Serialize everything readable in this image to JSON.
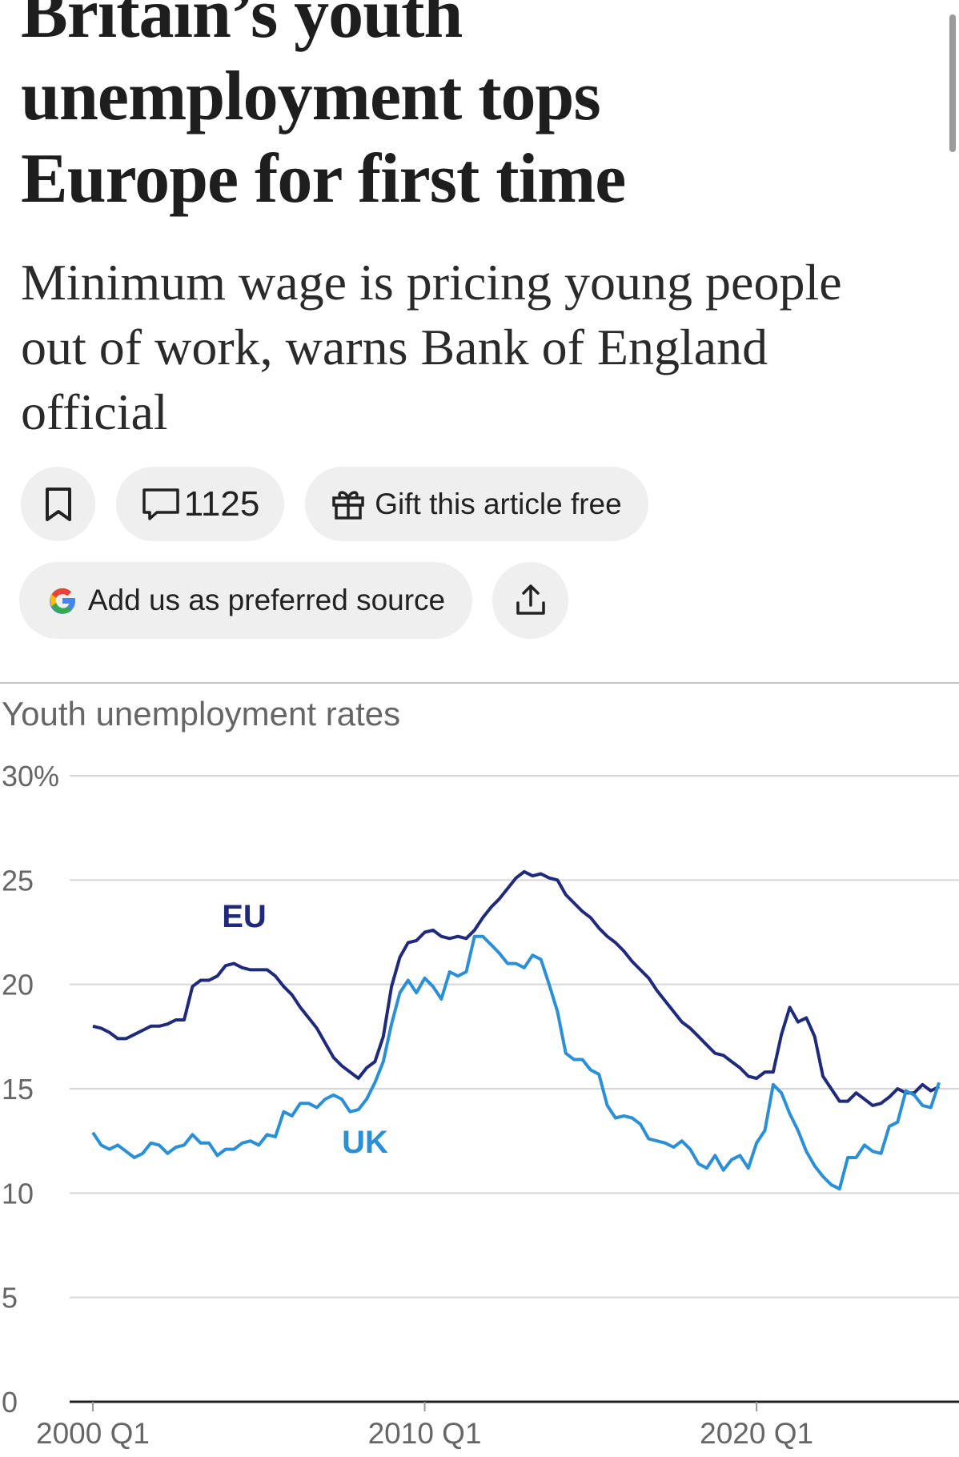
{
  "article": {
    "title": "Britain’s youth unemployment tops Europe for first time",
    "subtitle": "Minimum wage is pricing young people out of work, warns Bank of England official",
    "comments": 1125,
    "gift": "Gift this article free",
    "preferred": "Add us as preferred source"
  },
  "chart_data": {
    "type": "line",
    "title": "Youth unemployment rates",
    "x": [
      2000,
      2000.25,
      2000.5,
      2000.75,
      2001,
      2001.25,
      2001.5,
      2001.75,
      2002,
      2002.25,
      2002.5,
      2002.75,
      2003,
      2003.25,
      2003.5,
      2003.75,
      2004,
      2004.25,
      2004.5,
      2004.75,
      2005,
      2005.25,
      2005.5,
      2005.75,
      2006,
      2006.25,
      2006.5,
      2006.75,
      2007,
      2007.25,
      2007.5,
      2007.75,
      2008,
      2008.25,
      2008.5,
      2008.75,
      2009,
      2009.25,
      2009.5,
      2009.75,
      2010,
      2010.25,
      2010.5,
      2010.75,
      2011,
      2011.25,
      2011.5,
      2011.75,
      2012,
      2012.25,
      2012.5,
      2012.75,
      2013,
      2013.25,
      2013.5,
      2013.75,
      2014,
      2014.25,
      2014.5,
      2014.75,
      2015,
      2015.25,
      2015.5,
      2015.75,
      2016,
      2016.25,
      2016.5,
      2016.75,
      2017,
      2017.25,
      2017.5,
      2017.75,
      2018,
      2018.25,
      2018.5,
      2018.75,
      2019,
      2019.25,
      2019.5,
      2019.75,
      2020,
      2020.25,
      2020.5,
      2020.75,
      2021,
      2021.25,
      2021.5,
      2021.75,
      2022,
      2022.25,
      2022.5,
      2022.75,
      2023,
      2023.25,
      2023.5,
      2023.75,
      2024,
      2024.25,
      2024.5,
      2024.75,
      2025,
      2025.25,
      2025.5
    ],
    "series": [
      {
        "name": "EU",
        "color": "#1f2a7a",
        "values": [
          18.0,
          17.9,
          17.7,
          17.4,
          17.4,
          17.6,
          17.8,
          18.0,
          18.0,
          18.1,
          18.3,
          18.3,
          19.9,
          20.2,
          20.2,
          20.4,
          20.9,
          21.0,
          20.8,
          20.7,
          20.7,
          20.7,
          20.4,
          19.9,
          19.5,
          18.9,
          18.4,
          17.9,
          17.2,
          16.5,
          16.1,
          15.8,
          15.5,
          16.0,
          16.3,
          17.5,
          19.9,
          21.3,
          22.0,
          22.1,
          22.5,
          22.6,
          22.3,
          22.2,
          22.3,
          22.2,
          22.6,
          23.2,
          23.7,
          24.1,
          24.6,
          25.1,
          25.4,
          25.2,
          25.3,
          25.1,
          25.0,
          24.3,
          23.9,
          23.5,
          23.2,
          22.7,
          22.3,
          22.0,
          21.6,
          21.1,
          20.7,
          20.3,
          19.7,
          19.2,
          18.7,
          18.2,
          17.9,
          17.5,
          17.1,
          16.7,
          16.6,
          16.3,
          16.0,
          15.6,
          15.5,
          15.8,
          15.8,
          17.6,
          18.9,
          18.2,
          18.4,
          17.5,
          15.6,
          15.0,
          14.4,
          14.4,
          14.8,
          14.5,
          14.2,
          14.3,
          14.6,
          15.0,
          14.8,
          14.8,
          15.2,
          14.9,
          15.1
        ]
      },
      {
        "name": "UK",
        "color": "#2b8fd6",
        "values": [
          12.9,
          12.3,
          12.1,
          12.3,
          12.0,
          11.7,
          11.9,
          12.4,
          12.3,
          11.9,
          12.2,
          12.3,
          12.8,
          12.4,
          12.4,
          11.8,
          12.1,
          12.1,
          12.4,
          12.5,
          12.3,
          12.8,
          12.7,
          13.9,
          13.7,
          14.3,
          14.3,
          14.1,
          14.5,
          14.7,
          14.5,
          13.9,
          14.0,
          14.5,
          15.3,
          16.3,
          18.1,
          19.6,
          20.2,
          19.6,
          20.3,
          19.9,
          19.3,
          20.6,
          20.4,
          20.6,
          22.3,
          22.3,
          21.9,
          21.5,
          21.0,
          21.0,
          20.8,
          21.4,
          21.2,
          20.0,
          18.7,
          16.7,
          16.4,
          16.4,
          15.9,
          15.7,
          14.2,
          13.6,
          13.7,
          13.6,
          13.3,
          12.6,
          12.5,
          12.4,
          12.2,
          12.5,
          12.1,
          11.4,
          11.2,
          11.8,
          11.1,
          11.6,
          11.8,
          11.2,
          12.4,
          13.0,
          15.2,
          14.8,
          13.8,
          13.0,
          12.0,
          11.3,
          10.8,
          10.4,
          10.2,
          11.7,
          11.7,
          12.3,
          12.0,
          11.9,
          13.2,
          13.4,
          14.9,
          14.7,
          14.2,
          14.1,
          15.3
        ]
      }
    ],
    "xlim": [
      1999.3,
      2026.1
    ],
    "xticks": [
      {
        "value": 2000,
        "label": "2000 Q1"
      },
      {
        "value": 2010,
        "label": "2010 Q1"
      },
      {
        "value": 2020,
        "label": "2020 Q1"
      }
    ],
    "ylim": [
      0,
      30
    ],
    "yticks": [
      0,
      5,
      10,
      15,
      20,
      25,
      {
        "value": 30,
        "label": "30%"
      }
    ],
    "grid": true
  }
}
